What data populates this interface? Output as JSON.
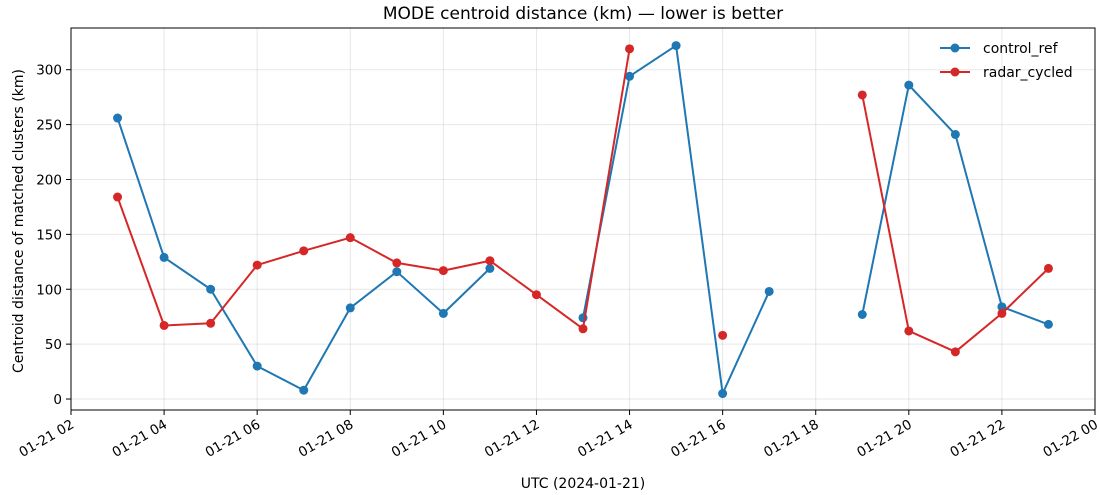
{
  "chart_data": {
    "type": "line",
    "title": "MODE centroid distance (km) — lower is better",
    "xlabel": "UTC (2024-01-21)",
    "ylabel": "Centroid distance of matched clusters (km)",
    "x_unit": "hour",
    "xlim": [
      "2024-01-21 02:00",
      "2024-01-22 00:00"
    ],
    "ylim": [
      -10,
      338
    ],
    "x_ticks": [
      "2024-01-21 02:00",
      "2024-01-21 04:00",
      "2024-01-21 06:00",
      "2024-01-21 08:00",
      "2024-01-21 10:00",
      "2024-01-21 12:00",
      "2024-01-21 14:00",
      "2024-01-21 16:00",
      "2024-01-21 18:00",
      "2024-01-21 20:00",
      "2024-01-21 22:00",
      "2024-01-22 00:00"
    ],
    "x_tick_labels": [
      "01-21 02",
      "01-21 04",
      "01-21 06",
      "01-21 08",
      "01-21 10",
      "01-21 12",
      "01-21 14",
      "01-21 16",
      "01-21 18",
      "01-21 20",
      "01-21 22",
      "01-22 00"
    ],
    "y_ticks": [
      0,
      50,
      100,
      150,
      200,
      250,
      300
    ],
    "y_tick_labels": [
      "0",
      "50",
      "100",
      "150",
      "200",
      "250",
      "300"
    ],
    "grid": true,
    "legend_position": "top-right",
    "x": [
      "2024-01-21 03:00",
      "2024-01-21 04:00",
      "2024-01-21 05:00",
      "2024-01-21 06:00",
      "2024-01-21 07:00",
      "2024-01-21 08:00",
      "2024-01-21 09:00",
      "2024-01-21 10:00",
      "2024-01-21 11:00",
      "2024-01-21 12:00",
      "2024-01-21 13:00",
      "2024-01-21 14:00",
      "2024-01-21 15:00",
      "2024-01-21 16:00",
      "2024-01-21 17:00",
      "2024-01-21 18:00",
      "2024-01-21 19:00",
      "2024-01-21 20:00",
      "2024-01-21 21:00",
      "2024-01-21 22:00",
      "2024-01-21 23:00"
    ],
    "series": [
      {
        "name": "control_ref",
        "color": "#1f77b4",
        "values": [
          256,
          129,
          100,
          30,
          8,
          83,
          116,
          78,
          119,
          null,
          74,
          294,
          322,
          5,
          98,
          null,
          77,
          286,
          241,
          84,
          68
        ]
      },
      {
        "name": "radar_cycled",
        "color": "#d62728",
        "values": [
          184,
          67,
          69,
          122,
          135,
          147,
          124,
          117,
          126,
          95,
          64,
          319,
          null,
          58,
          null,
          null,
          277,
          62,
          43,
          78,
          119
        ]
      }
    ]
  }
}
